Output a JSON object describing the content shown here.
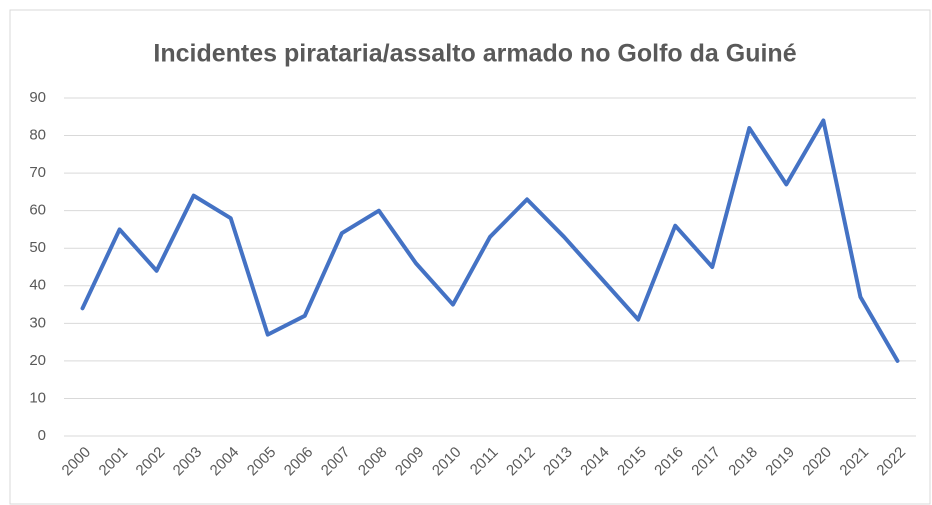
{
  "chart_data": {
    "type": "line",
    "title": "Incidentes pirataria/assalto armado no Golfo da Guiné",
    "categories": [
      "2000",
      "2001",
      "2002",
      "2003",
      "2004",
      "2005",
      "2006",
      "2007",
      "2008",
      "2009",
      "2010",
      "2011",
      "2012",
      "2013",
      "2014",
      "2015",
      "2016",
      "2017",
      "2018",
      "2019",
      "2020",
      "2021",
      "2022"
    ],
    "values": [
      34,
      55,
      44,
      64,
      58,
      27,
      32,
      54,
      60,
      46,
      35,
      53,
      63,
      53,
      42,
      31,
      56,
      45,
      82,
      67,
      84,
      37,
      20
    ],
    "color": "#4472c4",
    "ylim": [
      0,
      90
    ],
    "yticks": [
      0,
      10,
      20,
      30,
      40,
      50,
      60,
      70,
      80,
      90
    ],
    "grid": true
  }
}
